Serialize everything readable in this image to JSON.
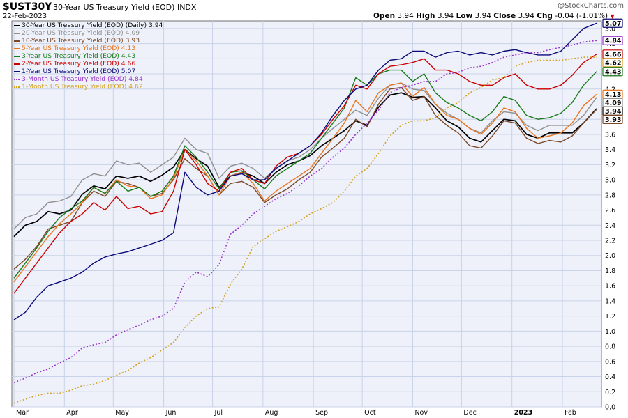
{
  "header": {
    "symbol": "$UST30Y",
    "name": "30-Year US Treasury Yield (EOD)",
    "exchange": "INDX",
    "date": "22-Feb-2023",
    "watermark": "@StockCharts.com",
    "open_label": "Open",
    "open": "3.94",
    "high_label": "High",
    "high": "3.94",
    "low_label": "Low",
    "low": "3.94",
    "close_label": "Close",
    "close": "3.94",
    "chg_label": "Chg",
    "chg": "-0.04 (-1.01%)",
    "chg_icon": "triangle-down-icon",
    "chg_color": "#cc0000"
  },
  "chart_data": {
    "type": "line",
    "title": "30-Year US Treasury Yield (EOD)",
    "xlabel": "",
    "ylabel": "",
    "x_ticks": [
      "Mar",
      "Apr",
      "May",
      "Jun",
      "Jul",
      "Aug",
      "Sep",
      "Oct",
      "Nov",
      "Dec",
      "2023",
      "Feb"
    ],
    "y_ticks": [
      "0.0",
      "0.2",
      "0.4",
      "0.6",
      "0.8",
      "1.0",
      "1.2",
      "1.4",
      "1.6",
      "1.8",
      "2.0",
      "2.2",
      "2.4",
      "2.6",
      "2.8",
      "3.0",
      "3.2",
      "3.4",
      "3.6",
      "3.8",
      "4.0",
      "4.2",
      "4.4",
      "4.6",
      "4.8",
      "5.0"
    ],
    "ylim": [
      0,
      5.1
    ],
    "y_axis_side": "right",
    "grid": true,
    "legend_position": "top-left",
    "x": [
      "2022-03-01",
      "2022-03-08",
      "2022-03-15",
      "2022-03-22",
      "2022-03-29",
      "2022-04-05",
      "2022-04-12",
      "2022-04-19",
      "2022-04-26",
      "2022-05-03",
      "2022-05-10",
      "2022-05-17",
      "2022-05-24",
      "2022-05-31",
      "2022-06-07",
      "2022-06-14",
      "2022-06-21",
      "2022-06-28",
      "2022-07-05",
      "2022-07-12",
      "2022-07-19",
      "2022-07-26",
      "2022-08-02",
      "2022-08-09",
      "2022-08-16",
      "2022-08-23",
      "2022-08-30",
      "2022-09-06",
      "2022-09-13",
      "2022-09-20",
      "2022-09-27",
      "2022-10-04",
      "2022-10-11",
      "2022-10-18",
      "2022-10-25",
      "2022-11-01",
      "2022-11-08",
      "2022-11-15",
      "2022-11-22",
      "2022-11-29",
      "2022-12-06",
      "2022-12-13",
      "2022-12-20",
      "2022-12-27",
      "2023-01-03",
      "2023-01-10",
      "2023-01-17",
      "2023-01-24",
      "2023-01-31",
      "2023-02-07",
      "2023-02-14",
      "2023-02-22"
    ],
    "series": [
      {
        "name": "30-Year US Treasury Yield (EOD) (Daily)",
        "legend_value": "3.94",
        "color": "#000000",
        "dashed": false,
        "width": 1.7,
        "values": [
          2.25,
          2.4,
          2.45,
          2.58,
          2.55,
          2.6,
          2.81,
          2.92,
          2.88,
          3.05,
          3.02,
          3.05,
          2.98,
          3.06,
          3.17,
          3.4,
          3.28,
          3.18,
          2.9,
          3.05,
          3.1,
          3.05,
          2.95,
          3.1,
          3.2,
          3.25,
          3.32,
          3.45,
          3.55,
          3.65,
          3.78,
          3.72,
          3.96,
          4.12,
          4.15,
          4.09,
          4.1,
          3.95,
          3.78,
          3.7,
          3.55,
          3.5,
          3.65,
          3.8,
          3.78,
          3.6,
          3.55,
          3.62,
          3.62,
          3.62,
          3.75,
          3.94
        ]
      },
      {
        "name": "20-Year US Treasury Yield (EOD)",
        "legend_value": "4.09",
        "color": "#909090",
        "dashed": false,
        "width": 1.4,
        "values": [
          2.35,
          2.5,
          2.55,
          2.7,
          2.72,
          2.78,
          3.0,
          3.08,
          3.05,
          3.25,
          3.2,
          3.22,
          3.1,
          3.2,
          3.3,
          3.55,
          3.4,
          3.35,
          3.02,
          3.18,
          3.22,
          3.15,
          3.02,
          3.15,
          3.25,
          3.3,
          3.4,
          3.55,
          3.68,
          3.8,
          3.92,
          3.85,
          4.08,
          4.25,
          4.28,
          4.2,
          4.18,
          4.0,
          3.88,
          3.8,
          3.68,
          3.62,
          3.78,
          3.9,
          3.88,
          3.72,
          3.65,
          3.72,
          3.72,
          3.72,
          3.85,
          4.09
        ]
      },
      {
        "name": "10-Year US Treasury Yield (EOD)",
        "legend_value": "3.93",
        "color": "#7b4726",
        "dashed": false,
        "width": 1.4,
        "values": [
          1.82,
          1.95,
          2.12,
          2.35,
          2.4,
          2.45,
          2.7,
          2.85,
          2.78,
          2.98,
          2.95,
          2.9,
          2.78,
          2.82,
          3.0,
          3.28,
          3.15,
          3.05,
          2.8,
          2.95,
          2.98,
          2.9,
          2.7,
          2.8,
          2.88,
          3.0,
          3.1,
          3.3,
          3.42,
          3.55,
          3.8,
          3.7,
          4.0,
          4.2,
          4.22,
          4.05,
          4.1,
          3.85,
          3.72,
          3.62,
          3.45,
          3.42,
          3.58,
          3.78,
          3.75,
          3.55,
          3.48,
          3.52,
          3.5,
          3.58,
          3.75,
          3.93
        ]
      },
      {
        "name": "5-Year US Treasury Yield (EOD)",
        "legend_value": "4.13",
        "color": "#e87620",
        "dashed": false,
        "width": 1.4,
        "values": [
          1.65,
          1.85,
          2.05,
          2.25,
          2.42,
          2.55,
          2.7,
          2.9,
          2.82,
          3.0,
          2.92,
          2.9,
          2.75,
          2.8,
          3.02,
          3.4,
          3.25,
          3.05,
          2.8,
          3.05,
          3.1,
          2.95,
          2.72,
          2.85,
          2.95,
          3.05,
          3.15,
          3.35,
          3.55,
          3.75,
          4.05,
          3.9,
          4.15,
          4.25,
          4.28,
          4.1,
          4.22,
          4.0,
          3.85,
          3.8,
          3.68,
          3.6,
          3.75,
          3.95,
          3.9,
          3.68,
          3.55,
          3.58,
          3.62,
          3.75,
          3.98,
          4.13
        ]
      },
      {
        "name": "3-Year US Treasury Yield (EOD)",
        "legend_value": "4.43",
        "color": "#1a7a1a",
        "dashed": false,
        "width": 1.4,
        "values": [
          1.7,
          1.9,
          2.1,
          2.32,
          2.5,
          2.62,
          2.72,
          2.9,
          2.82,
          2.98,
          2.85,
          2.9,
          2.78,
          2.85,
          3.05,
          3.45,
          3.3,
          3.1,
          2.88,
          3.1,
          3.12,
          3.0,
          2.88,
          3.05,
          3.15,
          3.25,
          3.35,
          3.55,
          3.75,
          3.95,
          4.35,
          4.25,
          4.4,
          4.45,
          4.45,
          4.3,
          4.4,
          4.15,
          4.02,
          3.95,
          3.85,
          3.78,
          3.9,
          4.1,
          4.05,
          3.85,
          3.8,
          3.82,
          3.88,
          4.02,
          4.25,
          4.43
        ]
      },
      {
        "name": "2-Year US Treasury Yield (EOD)",
        "legend_value": "4.66",
        "color": "#cc0000",
        "dashed": false,
        "width": 1.4,
        "values": [
          1.5,
          1.7,
          1.9,
          2.1,
          2.3,
          2.45,
          2.55,
          2.7,
          2.6,
          2.78,
          2.62,
          2.65,
          2.55,
          2.58,
          2.85,
          3.4,
          3.2,
          2.95,
          2.85,
          3.1,
          3.15,
          3.0,
          2.95,
          3.18,
          3.3,
          3.35,
          3.45,
          3.6,
          3.8,
          3.98,
          4.25,
          4.2,
          4.4,
          4.5,
          4.52,
          4.55,
          4.6,
          4.45,
          4.45,
          4.4,
          4.3,
          4.25,
          4.25,
          4.35,
          4.4,
          4.25,
          4.2,
          4.2,
          4.25,
          4.38,
          4.55,
          4.66
        ]
      },
      {
        "name": "1-Year US Treasury Yield (EOD)",
        "legend_value": "5.07",
        "color": "#0a0a7a",
        "dashed": false,
        "width": 1.4,
        "values": [
          1.15,
          1.25,
          1.45,
          1.6,
          1.65,
          1.7,
          1.78,
          1.9,
          1.98,
          2.02,
          2.05,
          2.1,
          2.15,
          2.2,
          2.3,
          3.1,
          2.9,
          2.8,
          2.85,
          3.05,
          3.08,
          3.0,
          3.0,
          3.15,
          3.25,
          3.35,
          3.45,
          3.62,
          3.85,
          4.05,
          4.2,
          4.25,
          4.45,
          4.58,
          4.6,
          4.7,
          4.7,
          4.62,
          4.68,
          4.7,
          4.65,
          4.68,
          4.65,
          4.7,
          4.72,
          4.68,
          4.65,
          4.65,
          4.7,
          4.85,
          5.0,
          5.07
        ]
      },
      {
        "name": "3-Month US Treasury Yield (EOD)",
        "legend_value": "4.84",
        "color": "#9933cc",
        "dashed": true,
        "width": 1.6,
        "values": [
          0.32,
          0.38,
          0.45,
          0.5,
          0.58,
          0.65,
          0.78,
          0.82,
          0.85,
          0.95,
          1.02,
          1.08,
          1.15,
          1.2,
          1.3,
          1.65,
          1.78,
          1.72,
          1.88,
          2.28,
          2.4,
          2.55,
          2.65,
          2.75,
          2.82,
          2.92,
          3.05,
          3.15,
          3.3,
          3.42,
          3.6,
          3.75,
          3.92,
          4.15,
          4.22,
          4.25,
          4.3,
          4.3,
          4.4,
          4.42,
          4.48,
          4.5,
          4.55,
          4.62,
          4.65,
          4.68,
          4.68,
          4.72,
          4.75,
          4.78,
          4.82,
          4.84
        ]
      },
      {
        "name": "1-Month US Treasury Yield (EOD)",
        "legend_value": "4.62",
        "color": "#d4a020",
        "dashed": true,
        "width": 1.6,
        "values": [
          0.05,
          0.1,
          0.15,
          0.18,
          0.18,
          0.22,
          0.28,
          0.3,
          0.35,
          0.42,
          0.48,
          0.58,
          0.65,
          0.75,
          0.85,
          1.05,
          1.2,
          1.3,
          1.32,
          1.62,
          1.82,
          2.12,
          2.22,
          2.32,
          2.38,
          2.45,
          2.55,
          2.62,
          2.7,
          2.85,
          3.05,
          3.15,
          3.35,
          3.58,
          3.72,
          3.78,
          3.78,
          3.82,
          3.95,
          4.02,
          4.15,
          4.22,
          4.32,
          4.35,
          4.5,
          4.55,
          4.58,
          4.58,
          4.58,
          4.6,
          4.62,
          4.62
        ]
      }
    ]
  }
}
